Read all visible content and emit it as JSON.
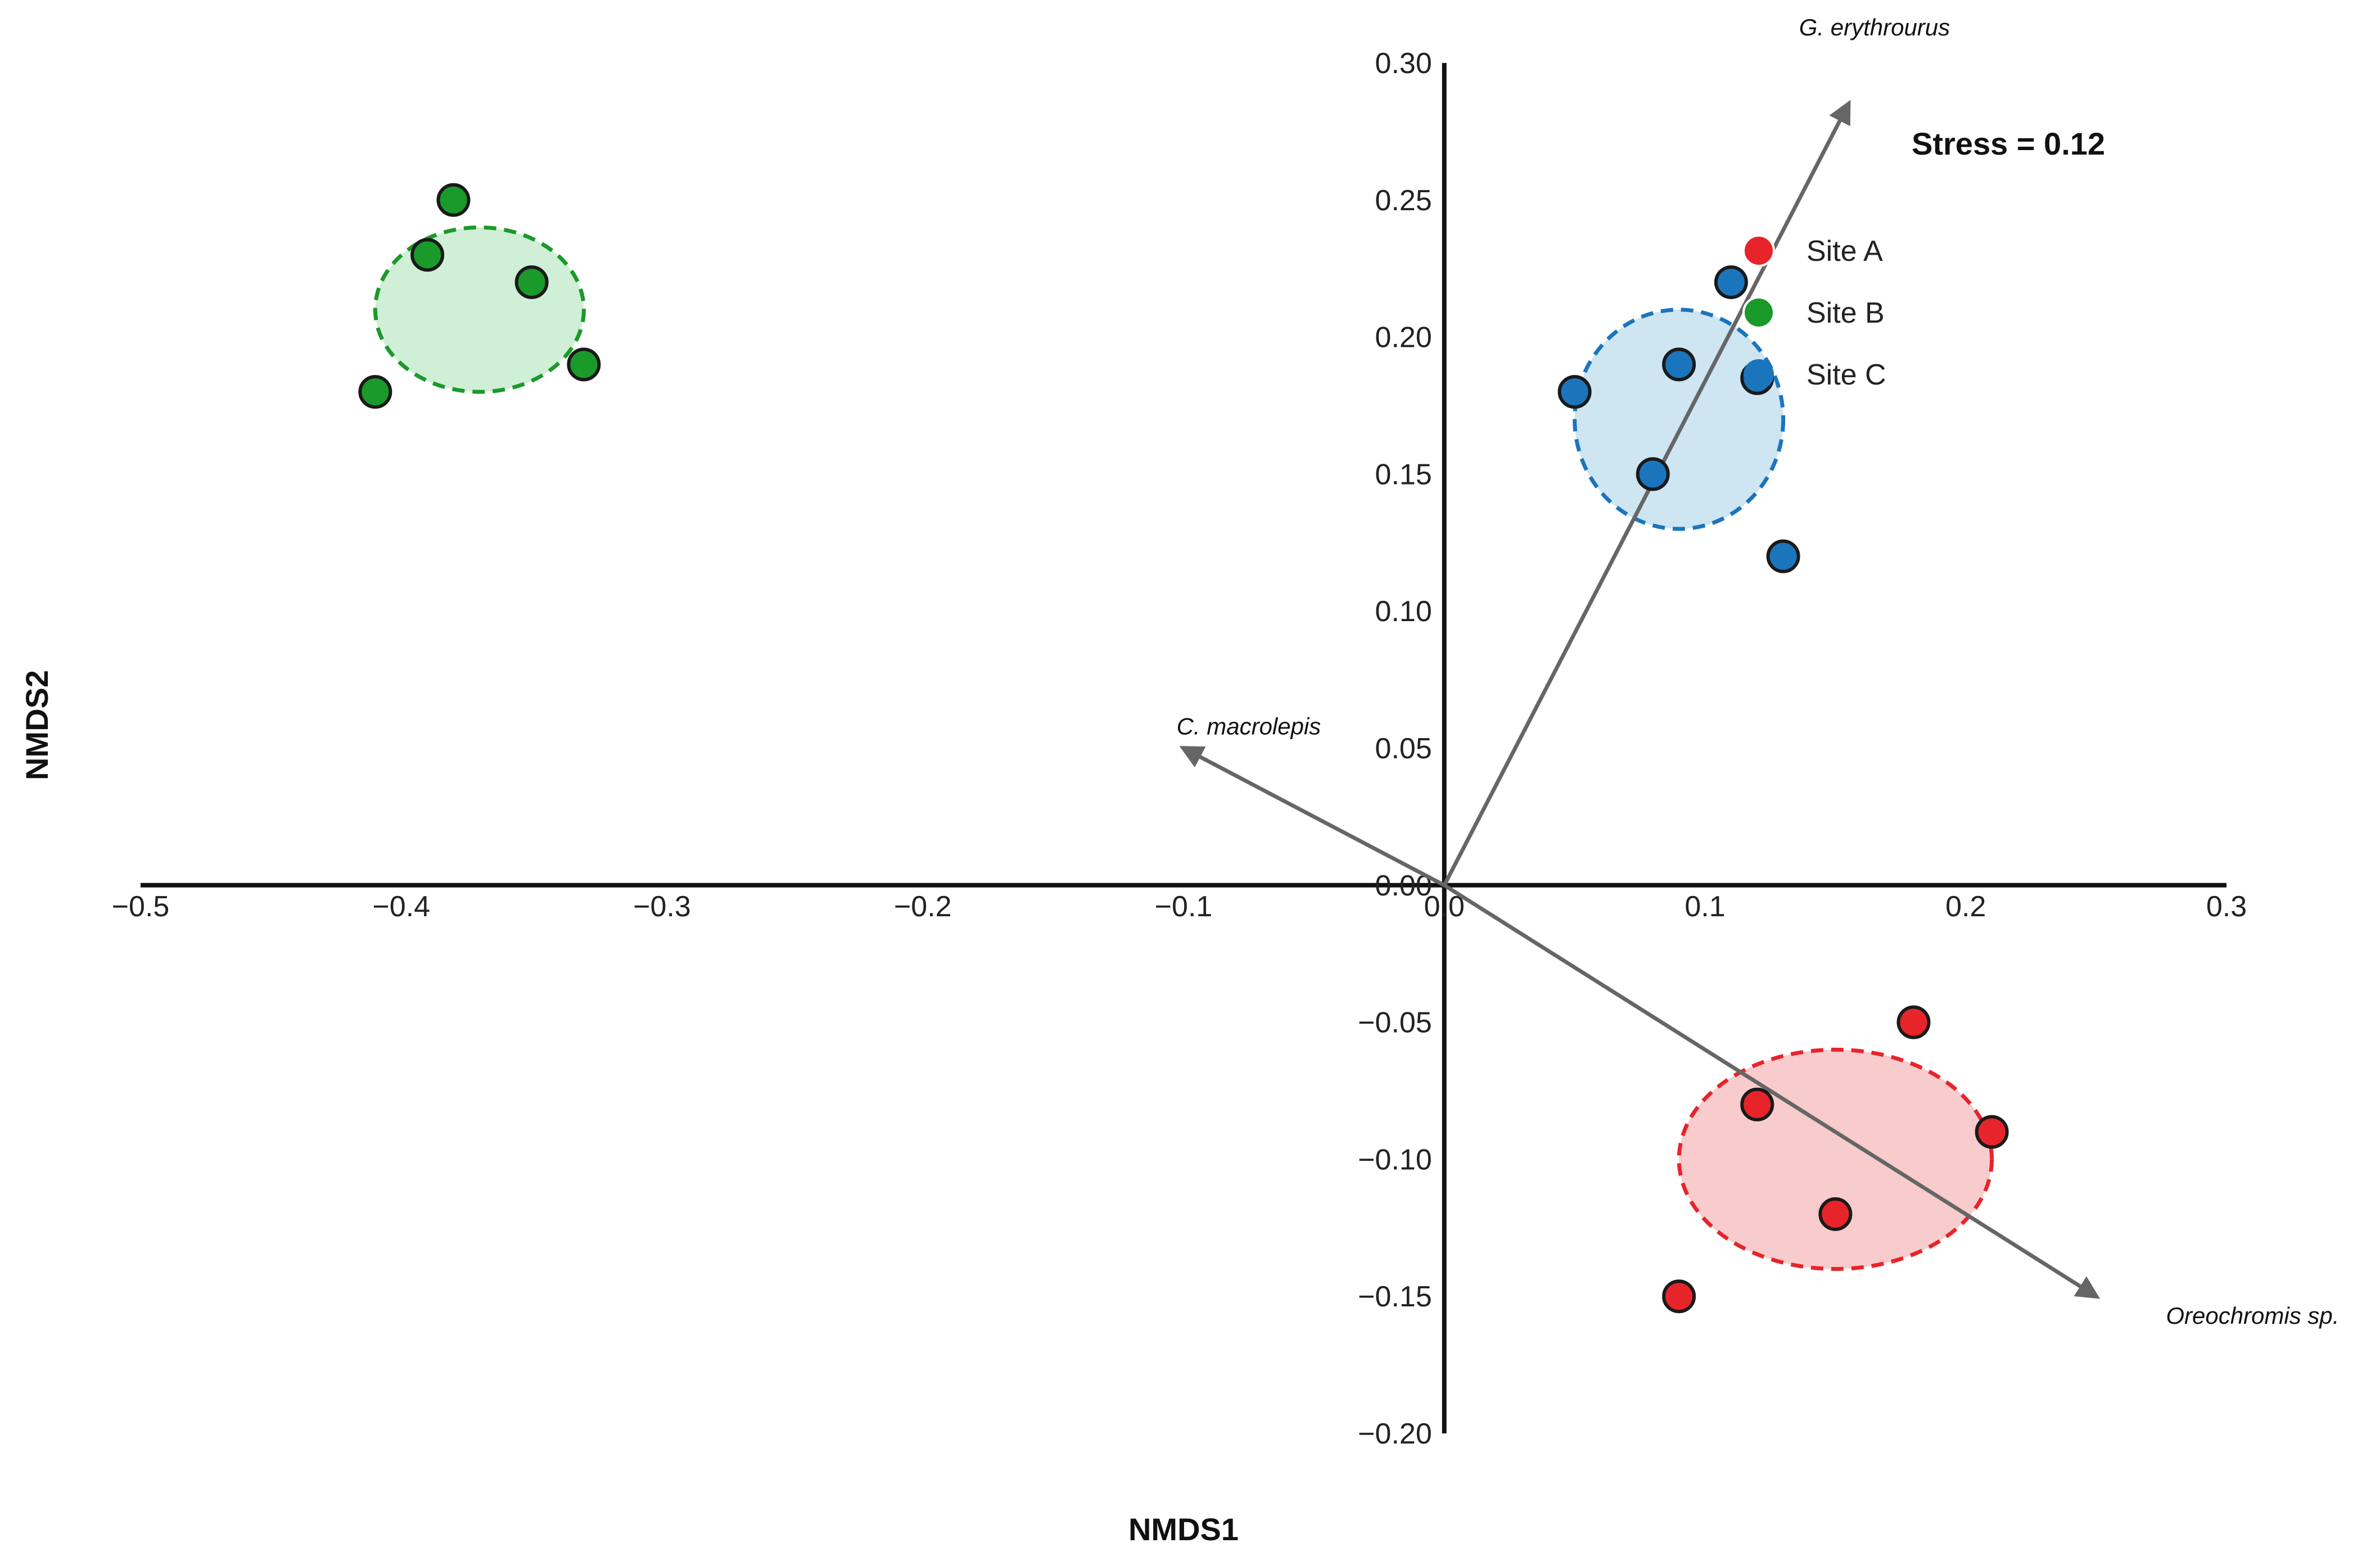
{
  "chart_data": {
    "type": "scatter",
    "title": "",
    "xlabel": "NMDS1",
    "ylabel": "NMDS2",
    "xlim": [
      -0.5,
      0.3
    ],
    "ylim": [
      -0.2,
      0.3
    ],
    "x_ticks": [
      {
        "value": -0.5,
        "label": "−0.5"
      },
      {
        "value": -0.4,
        "label": "−0.4"
      },
      {
        "value": -0.3,
        "label": "−0.3"
      },
      {
        "value": -0.2,
        "label": "−0.2"
      },
      {
        "value": -0.1,
        "label": "−0.1"
      },
      {
        "value": 0.0,
        "label": "0.0"
      },
      {
        "value": 0.1,
        "label": "0.1"
      },
      {
        "value": 0.2,
        "label": "0.2"
      },
      {
        "value": 0.3,
        "label": "0.3"
      }
    ],
    "y_ticks": [
      {
        "value": 0.3,
        "label": "0.30"
      },
      {
        "value": 0.25,
        "label": "0.25"
      },
      {
        "value": 0.2,
        "label": "0.20"
      },
      {
        "value": 0.15,
        "label": "0.15"
      },
      {
        "value": 0.1,
        "label": "0.10"
      },
      {
        "value": 0.05,
        "label": "0.05"
      },
      {
        "value": 0.0,
        "label": "0.00"
      },
      {
        "value": -0.05,
        "label": "−0.05"
      },
      {
        "value": -0.1,
        "label": "−0.10"
      },
      {
        "value": -0.15,
        "label": "−0.15"
      },
      {
        "value": -0.2,
        "label": "−0.20"
      }
    ],
    "grid": false,
    "stress_text": "Stress = 0.12",
    "legend_position": "top-right",
    "series": [
      {
        "name": "Site A",
        "color": "#e8242b",
        "fill_color": "#f7c3c3",
        "ellipse": {
          "cx": 0.15,
          "cy": -0.1,
          "rx": 0.06,
          "ry": 0.04
        },
        "points": [
          {
            "x": 0.18,
            "y": -0.05
          },
          {
            "x": 0.12,
            "y": -0.08
          },
          {
            "x": 0.21,
            "y": -0.09
          },
          {
            "x": 0.15,
            "y": -0.12
          },
          {
            "x": 0.09,
            "y": -0.15
          }
        ]
      },
      {
        "name": "Site B",
        "color": "#1a9a2a",
        "fill_color": "#c8ecd0",
        "ellipse": {
          "cx": -0.37,
          "cy": 0.21,
          "rx": 0.04,
          "ry": 0.03
        },
        "points": [
          {
            "x": -0.38,
            "y": 0.25
          },
          {
            "x": -0.39,
            "y": 0.23
          },
          {
            "x": -0.35,
            "y": 0.22
          },
          {
            "x": -0.33,
            "y": 0.19
          },
          {
            "x": -0.41,
            "y": 0.18
          }
        ]
      },
      {
        "name": "Site C",
        "color": "#1b75bc",
        "fill_color": "#c6e0f0",
        "ellipse": {
          "cx": 0.09,
          "cy": 0.17,
          "rx": 0.04,
          "ry": 0.04
        },
        "points": [
          {
            "x": 0.11,
            "y": 0.22
          },
          {
            "x": 0.09,
            "y": 0.19
          },
          {
            "x": 0.12,
            "y": 0.185
          },
          {
            "x": 0.05,
            "y": 0.18
          },
          {
            "x": 0.08,
            "y": 0.15
          },
          {
            "x": 0.13,
            "y": 0.12
          }
        ]
      }
    ],
    "vectors": [
      {
        "label": "G. erythrourus",
        "x": 0.155,
        "y": 0.285,
        "label_x": 0.165,
        "label_y": 0.31
      },
      {
        "label": "C. macrolepis",
        "x": -0.1,
        "y": 0.05,
        "label_x": -0.075,
        "label_y": 0.055
      },
      {
        "label": "Oreochromis sp.",
        "x": 0.25,
        "y": -0.15,
        "label_x": 0.31,
        "label_y": -0.16
      }
    ]
  }
}
